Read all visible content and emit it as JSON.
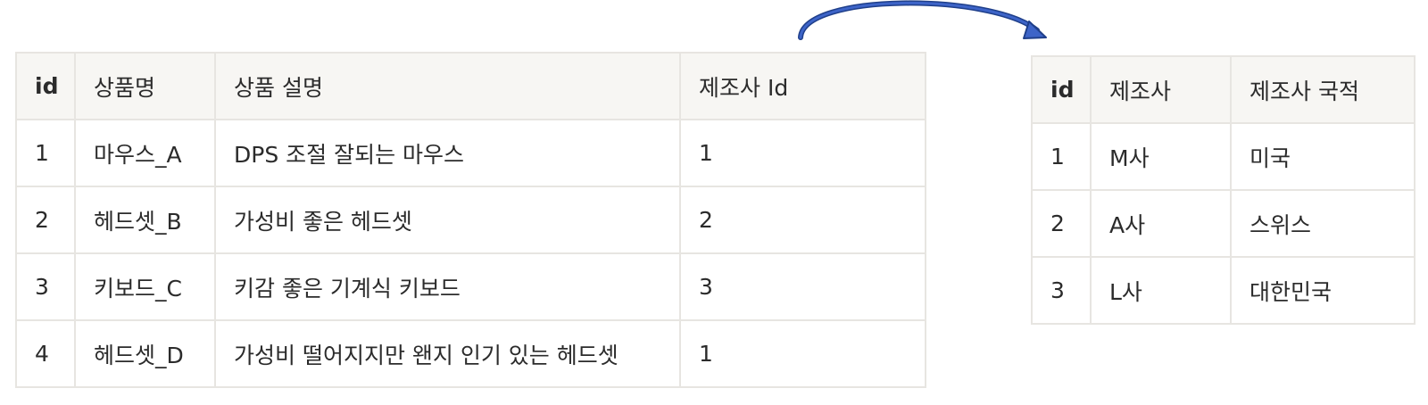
{
  "products": {
    "headers": [
      "id",
      "상품명",
      "상품 설명",
      "제조사 Id"
    ],
    "rows": [
      [
        "1",
        "마우스_A",
        "DPS 조절 잘되는 마우스",
        "1"
      ],
      [
        "2",
        "헤드셋_B",
        "가성비 좋은 헤드셋",
        "2"
      ],
      [
        "3",
        "키보드_C",
        "키감 좋은 기계식 키보드",
        "3"
      ],
      [
        "4",
        "헤드셋_D",
        "가성비 떨어지지만 왠지 인기 있는 헤드셋",
        "1"
      ]
    ]
  },
  "manufacturers": {
    "headers": [
      "id",
      "제조사",
      "제조사 국적"
    ],
    "rows": [
      [
        "1",
        "M사",
        "미국"
      ],
      [
        "2",
        "A사",
        "스위스"
      ],
      [
        "3",
        "L사",
        "대한민국"
      ]
    ]
  },
  "colors": {
    "border": "#e7e5e1",
    "header_bg": "#f7f6f3",
    "arrow": "#1f3f8a",
    "arrow_fill": "#3d64c8"
  }
}
